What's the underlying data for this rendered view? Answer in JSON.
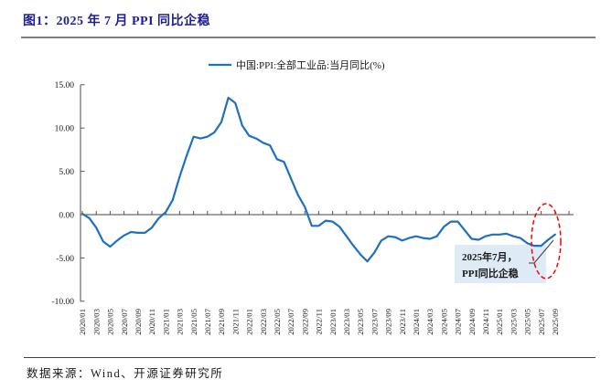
{
  "header": {
    "title": "图1：2025 年 7 月 PPI 同比企稳"
  },
  "footer": {
    "source": "数据来源：Wind、开源证券研究所"
  },
  "chart_data": {
    "type": "line",
    "title": "图1：2025 年 7 月 PPI 同比企稳",
    "legend_label": "中国:PPI:全部工业品:当月同比(%)",
    "legend_position": "top-center",
    "grid": false,
    "ylim": [
      -10,
      15
    ],
    "yticks": [
      15,
      10,
      5,
      0,
      -5,
      -10
    ],
    "ytick_labels": [
      "15.00",
      "10.00",
      "5.00",
      "0.00",
      "-5.00",
      "-10.00"
    ],
    "xtick_label_every_months": 2,
    "x": [
      "2020/01",
      "2020/02",
      "2020/03",
      "2020/04",
      "2020/05",
      "2020/06",
      "2020/07",
      "2020/08",
      "2020/09",
      "2020/10",
      "2020/11",
      "2020/12",
      "2021/01",
      "2021/02",
      "2021/03",
      "2021/04",
      "2021/05",
      "2021/06",
      "2021/07",
      "2021/08",
      "2021/09",
      "2021/10",
      "2021/11",
      "2021/12",
      "2022/01",
      "2022/02",
      "2022/03",
      "2022/04",
      "2022/05",
      "2022/06",
      "2022/07",
      "2022/08",
      "2022/09",
      "2022/10",
      "2022/11",
      "2022/12",
      "2023/01",
      "2023/02",
      "2023/03",
      "2023/04",
      "2023/05",
      "2023/06",
      "2023/07",
      "2023/08",
      "2023/09",
      "2023/10",
      "2023/11",
      "2023/12",
      "2024/01",
      "2024/02",
      "2024/03",
      "2024/04",
      "2024/05",
      "2024/06",
      "2024/07",
      "2024/08",
      "2024/09",
      "2024/10",
      "2024/11",
      "2024/12",
      "2025/01",
      "2025/02",
      "2025/03",
      "2025/04",
      "2025/05",
      "2025/06",
      "2025/07",
      "2025/08",
      "2025/09"
    ],
    "series": [
      {
        "name": "中国:PPI:全部工业品:当月同比(%)",
        "values": [
          0.1,
          -0.4,
          -1.5,
          -3.1,
          -3.7,
          -3.0,
          -2.4,
          -2.0,
          -2.1,
          -2.1,
          -1.5,
          -0.4,
          0.3,
          1.7,
          4.4,
          6.8,
          9.0,
          8.8,
          9.0,
          9.5,
          10.7,
          13.5,
          12.9,
          10.3,
          9.1,
          8.8,
          8.3,
          8.0,
          6.4,
          6.1,
          4.2,
          2.3,
          0.9,
          -1.3,
          -1.3,
          -0.7,
          -0.8,
          -1.4,
          -2.5,
          -3.6,
          -4.6,
          -5.4,
          -4.4,
          -3.0,
          -2.5,
          -2.6,
          -3.0,
          -2.7,
          -2.5,
          -2.7,
          -2.8,
          -2.5,
          -1.4,
          -0.8,
          -0.8,
          -1.8,
          -2.8,
          -2.9,
          -2.5,
          -2.3,
          -2.3,
          -2.2,
          -2.5,
          -2.7,
          -3.3,
          -3.6,
          -3.6,
          -2.9,
          -2.3
        ]
      }
    ],
    "annotation": {
      "line1": "2025年7月，",
      "line2": "PPI同比企稳",
      "target_month": "2025/07"
    },
    "colors": {
      "line": "#1E70C1",
      "axis": "#6b6b6b",
      "tick": "#555555",
      "annotation_bg": "#DEEAF6",
      "ellipse": "#FF0000",
      "title": "#1E1E8F"
    }
  }
}
